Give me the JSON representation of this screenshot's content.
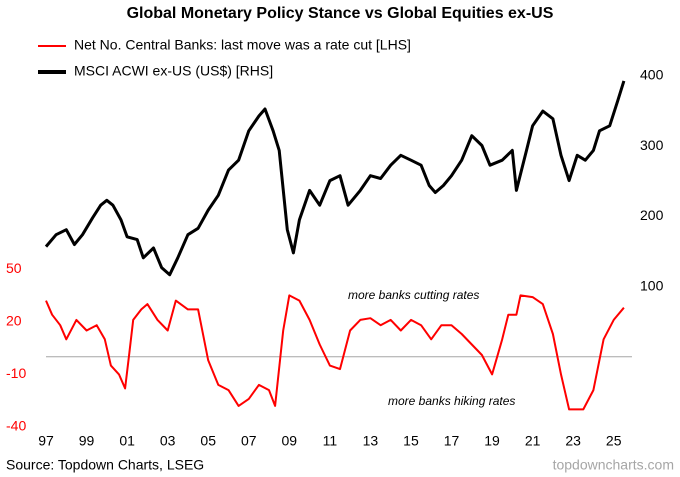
{
  "chart_data": {
    "type": "line",
    "title": "Global Monetary Policy Stance vs Global Equities ex-US",
    "source": "Source: Topdown Charts, LSEG",
    "watermark": "topdowncharts.com",
    "annotations": [
      "more banks cutting rates",
      "more banks hiking rates"
    ],
    "xlim": [
      1997,
      2026
    ],
    "xticks": [
      {
        "value": 1997,
        "label": "97"
      },
      {
        "value": 1999,
        "label": "99"
      },
      {
        "value": 2001,
        "label": "01"
      },
      {
        "value": 2003,
        "label": "03"
      },
      {
        "value": 2005,
        "label": "05"
      },
      {
        "value": 2007,
        "label": "07"
      },
      {
        "value": 2009,
        "label": "09"
      },
      {
        "value": 2011,
        "label": "11"
      },
      {
        "value": 2013,
        "label": "13"
      },
      {
        "value": 2015,
        "label": "15"
      },
      {
        "value": 2017,
        "label": "17"
      },
      {
        "value": 2019,
        "label": "19"
      },
      {
        "value": 2021,
        "label": "21"
      },
      {
        "value": 2023,
        "label": "23"
      },
      {
        "value": 2025,
        "label": "25"
      }
    ],
    "ylim": [
      -40,
      160
    ],
    "yticks": [
      -40,
      -10,
      20,
      50
    ],
    "ytick_color": "#ff0000",
    "y2lim": [
      -100,
      400
    ],
    "y2ticks": [
      100,
      200,
      300,
      400
    ],
    "series": [
      {
        "name": "Net No. Central Banks: last move was a rate cut [LHS]",
        "color": "#ff0000",
        "axis": "y",
        "x": [
          1997.0,
          1997.3,
          1997.7,
          1998.0,
          1998.5,
          1999.0,
          1999.5,
          1999.9,
          2000.2,
          2000.6,
          2000.9,
          2001.1,
          2001.3,
          2001.7,
          2002.0,
          2002.5,
          2003.0,
          2003.4,
          2004.0,
          2004.5,
          2005.0,
          2005.5,
          2006.0,
          2006.5,
          2007.0,
          2007.5,
          2008.0,
          2008.3,
          2008.7,
          2009.0,
          2009.5,
          2010.0,
          2010.5,
          2011.0,
          2011.5,
          2012.0,
          2012.5,
          2013.0,
          2013.5,
          2014.0,
          2014.5,
          2015.0,
          2015.5,
          2016.0,
          2016.5,
          2017.0,
          2017.5,
          2018.0,
          2018.5,
          2019.0,
          2019.5,
          2019.8,
          2020.2,
          2020.4,
          2021.0,
          2021.5,
          2022.0,
          2022.4,
          2022.8,
          2023.5,
          2024.0,
          2024.5,
          2025.0,
          2025.5
        ],
        "values": [
          32,
          24,
          18,
          10,
          21,
          15,
          18,
          10,
          -5,
          -10,
          -18,
          1,
          21,
          27,
          30,
          21,
          15,
          32,
          27,
          27,
          -2,
          -16,
          -19,
          -28,
          -24,
          -16,
          -19,
          -28,
          15,
          35,
          32,
          21,
          7,
          -5,
          -7,
          15,
          21,
          22,
          18,
          21,
          15,
          21,
          18,
          10,
          18,
          18,
          13,
          7,
          1,
          -10,
          10,
          24,
          24,
          35,
          34,
          30,
          13,
          -10,
          -30,
          -30,
          -19,
          10,
          21,
          28
        ]
      },
      {
        "name": "MSCI ACWI ex-US (US$) [RHS]",
        "color": "#000000",
        "axis": "y2",
        "x": [
          1997.0,
          1997.5,
          1998.0,
          1998.4,
          1998.8,
          1999.3,
          1999.7,
          2000.0,
          2000.3,
          2000.7,
          2001.0,
          2001.5,
          2001.8,
          2002.3,
          2002.7,
          2003.1,
          2003.5,
          2004.0,
          2004.5,
          2005.0,
          2005.5,
          2006.0,
          2006.5,
          2007.0,
          2007.5,
          2007.8,
          2008.2,
          2008.5,
          2008.9,
          2009.2,
          2009.5,
          2010.0,
          2010.5,
          2011.0,
          2011.5,
          2011.9,
          2012.5,
          2013.0,
          2013.5,
          2014.0,
          2014.5,
          2015.0,
          2015.5,
          2015.9,
          2016.2,
          2016.6,
          2017.0,
          2017.5,
          2018.0,
          2018.5,
          2018.9,
          2019.5,
          2020.0,
          2020.2,
          2020.7,
          2021.0,
          2021.5,
          2022.0,
          2022.4,
          2022.8,
          2023.2,
          2023.6,
          2024.0,
          2024.3,
          2024.8,
          2025.2,
          2025.5
        ],
        "values": [
          157,
          174,
          181,
          160,
          174,
          198,
          216,
          223,
          216,
          195,
          171,
          167,
          141,
          155,
          127,
          117,
          141,
          174,
          183,
          209,
          230,
          266,
          280,
          322,
          343,
          353,
          322,
          294,
          181,
          148,
          195,
          237,
          216,
          251,
          258,
          216,
          237,
          258,
          254,
          273,
          287,
          280,
          273,
          244,
          234,
          244,
          258,
          280,
          315,
          301,
          273,
          280,
          294,
          237,
          294,
          329,
          350,
          339,
          287,
          251,
          287,
          280,
          294,
          322,
          329,
          365,
          393
        ]
      }
    ]
  }
}
